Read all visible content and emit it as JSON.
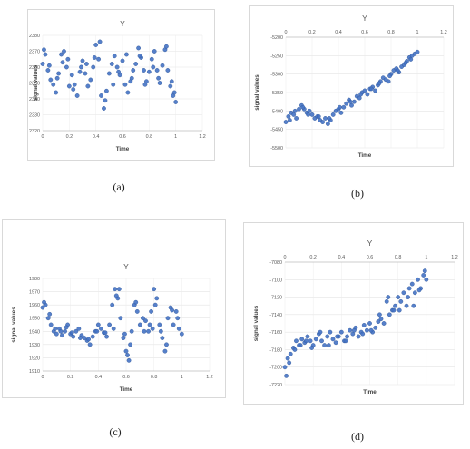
{
  "captions": [
    "(a)",
    "(b)",
    "(c)",
    "(d)"
  ],
  "chart_data": [
    {
      "type": "scatter",
      "title": "Y",
      "xlabel": "Time",
      "ylabel": "signal values",
      "xlim": [
        0,
        1.2
      ],
      "ylim": [
        2320,
        2380
      ],
      "xticks": [
        "0",
        "0.2",
        "0.4",
        "0.6",
        "0.8",
        "1",
        "1.2"
      ],
      "yticks": [
        "2380",
        "2370",
        "2360",
        "2350",
        "2340",
        "2330",
        "2320"
      ],
      "grid": true,
      "x_axis_position": "bottom",
      "marker_color": "#4472c4",
      "x": [
        0.0,
        0.02,
        0.04,
        0.06,
        0.08,
        0.1,
        0.12,
        0.14,
        0.16,
        0.18,
        0.2,
        0.22,
        0.24,
        0.26,
        0.28,
        0.3,
        0.32,
        0.34,
        0.36,
        0.38,
        0.4,
        0.42,
        0.44,
        0.46,
        0.48,
        0.5,
        0.52,
        0.54,
        0.56,
        0.58,
        0.6,
        0.62,
        0.64,
        0.66,
        0.68,
        0.7,
        0.72,
        0.74,
        0.76,
        0.78,
        0.8,
        0.82,
        0.84,
        0.86,
        0.88,
        0.9,
        0.92,
        0.94,
        0.96,
        0.98,
        1.0,
        0.01,
        0.05,
        0.11,
        0.15,
        0.19,
        0.23,
        0.29,
        0.33,
        0.39,
        0.43,
        0.47,
        0.53,
        0.57,
        0.63,
        0.67,
        0.73,
        0.77,
        0.83,
        0.87,
        0.93,
        0.97,
        0.99
      ],
      "y": [
        2362,
        2368,
        2358,
        2352,
        2349,
        2344,
        2356,
        2368,
        2370,
        2360,
        2348,
        2355,
        2349,
        2342,
        2357,
        2364,
        2356,
        2348,
        2352,
        2360,
        2374,
        2365,
        2342,
        2334,
        2345,
        2356,
        2362,
        2367,
        2360,
        2355,
        2364,
        2349,
        2344,
        2351,
        2358,
        2362,
        2372,
        2366,
        2358,
        2351,
        2357,
        2365,
        2370,
        2358,
        2350,
        2361,
        2371,
        2358,
        2348,
        2342,
        2338,
        2371,
        2361,
        2353,
        2363,
        2365,
        2346,
        2360,
        2362,
        2366,
        2376,
        2339,
        2349,
        2357,
        2368,
        2353,
        2367,
        2349,
        2360,
        2353,
        2373,
        2351,
        2344
      ]
    },
    {
      "type": "scatter",
      "title": "Y",
      "xlabel": "Time",
      "ylabel": "signal values",
      "xlim": [
        0,
        1.2
      ],
      "ylim": [
        -5500,
        -5200
      ],
      "xticks": [
        "0",
        "0.2",
        "0.4",
        "0.6",
        "0.8",
        "1",
        "1.2"
      ],
      "yticks": [
        "-5200",
        "-5250",
        "-5300",
        "-5350",
        "-5400",
        "-5450",
        "-5500"
      ],
      "grid": true,
      "x_axis_position": "top",
      "marker_color": "#4472c4",
      "x": [
        0.0,
        0.02,
        0.04,
        0.06,
        0.08,
        0.1,
        0.12,
        0.14,
        0.16,
        0.18,
        0.2,
        0.22,
        0.24,
        0.26,
        0.28,
        0.3,
        0.32,
        0.34,
        0.36,
        0.38,
        0.4,
        0.42,
        0.44,
        0.46,
        0.48,
        0.5,
        0.52,
        0.54,
        0.56,
        0.58,
        0.6,
        0.62,
        0.64,
        0.66,
        0.68,
        0.7,
        0.72,
        0.74,
        0.76,
        0.78,
        0.8,
        0.82,
        0.84,
        0.86,
        0.88,
        0.9,
        0.92,
        0.94,
        0.96,
        0.98,
        1.0,
        0.03,
        0.07,
        0.13,
        0.17,
        0.25,
        0.33,
        0.41,
        0.49,
        0.57,
        0.65,
        0.71,
        0.79,
        0.85,
        0.91,
        0.95
      ],
      "y": [
        -5430,
        -5415,
        -5405,
        -5410,
        -5420,
        -5395,
        -5385,
        -5395,
        -5405,
        -5400,
        -5410,
        -5420,
        -5415,
        -5425,
        -5430,
        -5420,
        -5435,
        -5425,
        -5410,
        -5400,
        -5395,
        -5405,
        -5390,
        -5380,
        -5370,
        -5385,
        -5375,
        -5360,
        -5365,
        -5350,
        -5345,
        -5355,
        -5340,
        -5335,
        -5345,
        -5330,
        -5320,
        -5310,
        -5315,
        -5320,
        -5300,
        -5290,
        -5285,
        -5295,
        -5280,
        -5275,
        -5265,
        -5255,
        -5250,
        -5245,
        -5240,
        -5425,
        -5400,
        -5390,
        -5410,
        -5415,
        -5420,
        -5390,
        -5375,
        -5355,
        -5340,
        -5325,
        -5305,
        -5290,
        -5270,
        -5260
      ]
    },
    {
      "type": "scatter",
      "title": "Y",
      "xlabel": "Time",
      "ylabel": "signal values",
      "xlim": [
        0,
        1.2
      ],
      "ylim": [
        1910,
        1980
      ],
      "xticks": [
        "0",
        "0.2",
        "0.4",
        "0.6",
        "0.8",
        "1",
        "1.2"
      ],
      "yticks": [
        "1980",
        "1970",
        "1960",
        "1950",
        "1940",
        "1930",
        "1920",
        "1910"
      ],
      "grid": true,
      "x_axis_position": "bottom",
      "marker_color": "#4472c4",
      "x": [
        0.0,
        0.02,
        0.04,
        0.06,
        0.08,
        0.1,
        0.12,
        0.14,
        0.16,
        0.18,
        0.2,
        0.22,
        0.24,
        0.26,
        0.28,
        0.3,
        0.32,
        0.34,
        0.36,
        0.38,
        0.4,
        0.42,
        0.44,
        0.46,
        0.48,
        0.5,
        0.52,
        0.54,
        0.56,
        0.58,
        0.6,
        0.62,
        0.64,
        0.66,
        0.68,
        0.7,
        0.72,
        0.74,
        0.76,
        0.78,
        0.8,
        0.82,
        0.84,
        0.86,
        0.88,
        0.9,
        0.92,
        0.94,
        0.96,
        0.98,
        1.0,
        0.01,
        0.05,
        0.09,
        0.13,
        0.17,
        0.21,
        0.27,
        0.33,
        0.39,
        0.45,
        0.51,
        0.53,
        0.55,
        0.59,
        0.61,
        0.63,
        0.67,
        0.73,
        0.77,
        0.79,
        0.81,
        0.85,
        0.89,
        0.93,
        0.97
      ],
      "y": [
        1958,
        1960,
        1950,
        1945,
        1940,
        1938,
        1942,
        1937,
        1940,
        1945,
        1938,
        1936,
        1940,
        1942,
        1937,
        1935,
        1933,
        1930,
        1936,
        1940,
        1945,
        1942,
        1939,
        1936,
        1945,
        1960,
        1972,
        1965,
        1950,
        1935,
        1925,
        1918,
        1940,
        1960,
        1955,
        1945,
        1950,
        1948,
        1940,
        1955,
        1972,
        1965,
        1945,
        1935,
        1925,
        1950,
        1958,
        1945,
        1955,
        1942,
        1938,
        1962,
        1953,
        1942,
        1940,
        1943,
        1939,
        1935,
        1934,
        1940,
        1939,
        1942,
        1967,
        1972,
        1938,
        1922,
        1930,
        1962,
        1940,
        1945,
        1942,
        1960,
        1940,
        1930,
        1956,
        1950
      ]
    },
    {
      "type": "scatter",
      "title": "Y",
      "xlabel": "Time",
      "ylabel": "signal values",
      "xlim": [
        0,
        1.2
      ],
      "ylim": [
        -7220,
        -7080
      ],
      "xticks": [
        "0",
        "0.2",
        "0.4",
        "0.6",
        "0.8",
        "1",
        "1.2"
      ],
      "yticks": [
        "-7080",
        "-7100",
        "-7120",
        "-7140",
        "-7160",
        "-7180",
        "-7200",
        "-7220"
      ],
      "grid": true,
      "x_axis_position": "top",
      "marker_color": "#4472c4",
      "x": [
        0.0,
        0.02,
        0.04,
        0.06,
        0.08,
        0.1,
        0.12,
        0.14,
        0.16,
        0.18,
        0.2,
        0.22,
        0.24,
        0.26,
        0.28,
        0.3,
        0.32,
        0.34,
        0.36,
        0.38,
        0.4,
        0.42,
        0.44,
        0.46,
        0.48,
        0.5,
        0.52,
        0.54,
        0.56,
        0.58,
        0.6,
        0.62,
        0.64,
        0.66,
        0.68,
        0.7,
        0.72,
        0.74,
        0.76,
        0.78,
        0.8,
        0.82,
        0.84,
        0.86,
        0.88,
        0.9,
        0.92,
        0.94,
        0.96,
        0.98,
        1.0,
        0.01,
        0.03,
        0.07,
        0.11,
        0.15,
        0.19,
        0.25,
        0.31,
        0.37,
        0.43,
        0.49,
        0.55,
        0.61,
        0.67,
        0.73,
        0.77,
        0.81,
        0.87,
        0.91,
        0.95,
        0.99
      ],
      "y": [
        -7200,
        -7190,
        -7185,
        -7178,
        -7170,
        -7175,
        -7168,
        -7172,
        -7165,
        -7170,
        -7175,
        -7168,
        -7162,
        -7170,
        -7175,
        -7165,
        -7160,
        -7168,
        -7172,
        -7165,
        -7160,
        -7170,
        -7165,
        -7158,
        -7162,
        -7155,
        -7165,
        -7160,
        -7152,
        -7158,
        -7150,
        -7160,
        -7155,
        -7148,
        -7145,
        -7150,
        -7125,
        -7140,
        -7135,
        -7130,
        -7120,
        -7125,
        -7115,
        -7130,
        -7110,
        -7105,
        -7115,
        -7100,
        -7110,
        -7095,
        -7100,
        -7210,
        -7195,
        -7180,
        -7175,
        -7170,
        -7178,
        -7160,
        -7175,
        -7165,
        -7170,
        -7158,
        -7162,
        -7158,
        -7140,
        -7120,
        -7135,
        -7135,
        -7120,
        -7130,
        -7112,
        -7090
      ]
    }
  ]
}
